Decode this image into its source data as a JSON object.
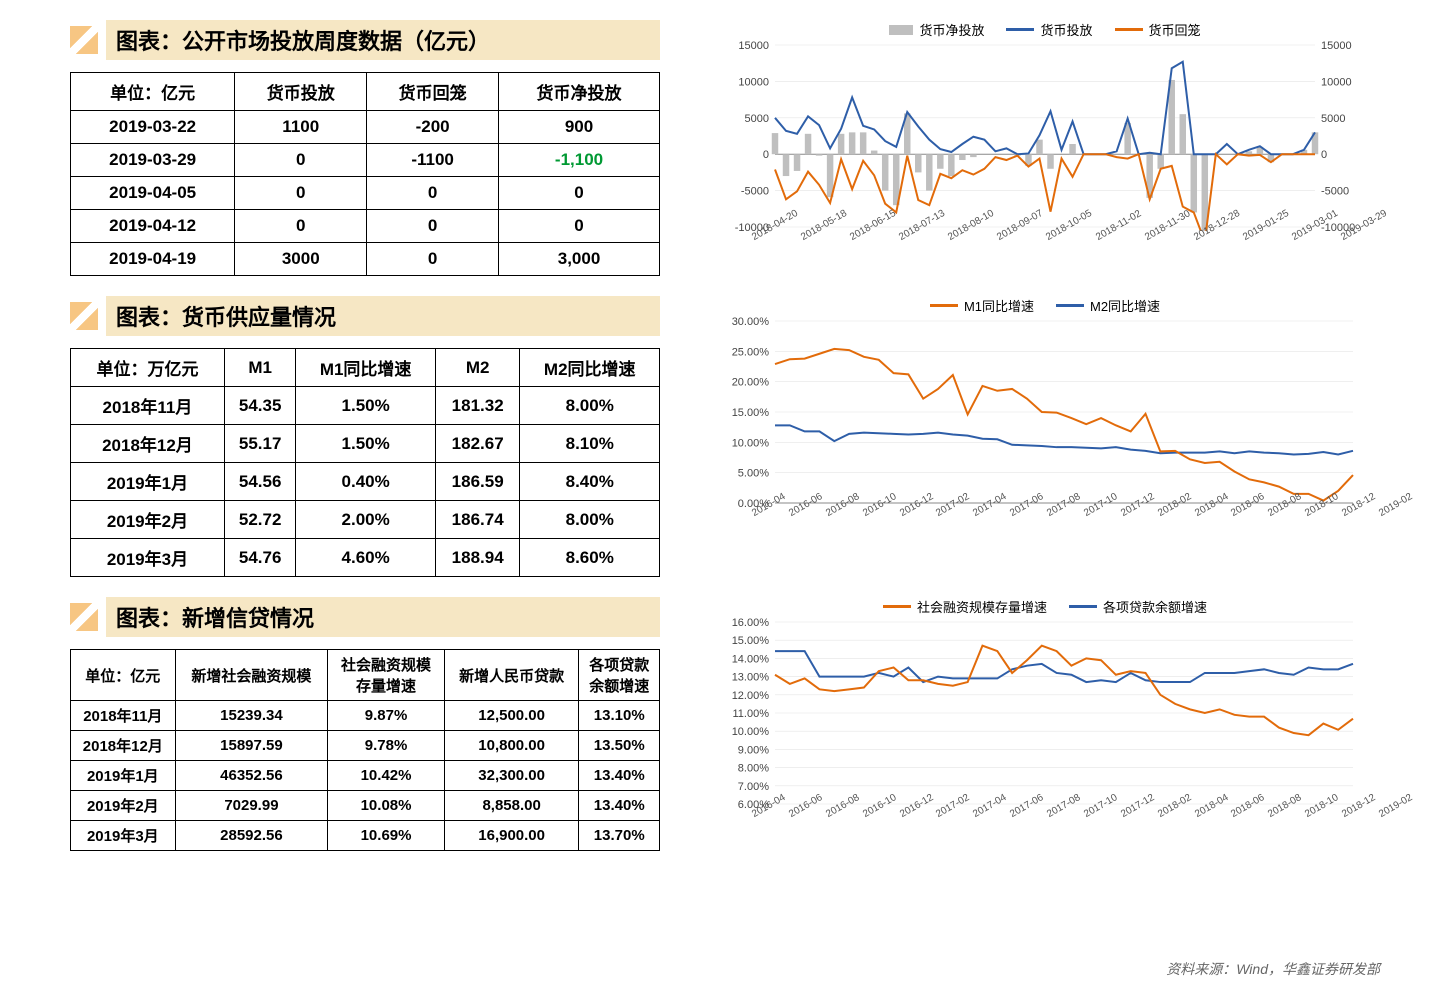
{
  "colors": {
    "titleBg": "#f6e7c4",
    "border": "#000000",
    "lineBlue": "#2e5ea8",
    "lineOrange": "#e26b0a",
    "barGray": "#bfbfbf",
    "neg": "#009933",
    "grid": "#e5e5e5"
  },
  "footer": "资料来源：Wind，华鑫证券研发部",
  "section1": {
    "title": "图表：公开市场投放周度数据（亿元）",
    "table": {
      "headers": [
        "单位：亿元",
        "货币投放",
        "货币回笼",
        "货币净投放"
      ],
      "rows": [
        [
          "2019-03-22",
          "1100",
          "-200",
          "900"
        ],
        [
          "2019-03-29",
          "0",
          "-1100",
          {
            "text": "-1,100",
            "neg": true
          }
        ],
        [
          "2019-04-05",
          "0",
          "0",
          "0"
        ],
        [
          "2019-04-12",
          "0",
          "0",
          "0"
        ],
        [
          "2019-04-19",
          "3000",
          "0",
          "3,000"
        ]
      ]
    },
    "chart": {
      "type": "bar+line",
      "legend": [
        {
          "label": "货币净投放",
          "style": "bar",
          "color": "#bfbfbf"
        },
        {
          "label": "货币投放",
          "style": "line",
          "color": "#2e5ea8"
        },
        {
          "label": "货币回笼",
          "style": "line",
          "color": "#e26b0a"
        }
      ],
      "ylim": [
        -10000,
        15000
      ],
      "yticks": [
        -10000,
        -5000,
        0,
        5000,
        10000,
        15000
      ],
      "rightAxis": true,
      "xlabels": [
        "2018-04-20",
        "2018-05-18",
        "2018-06-15",
        "2018-07-13",
        "2018-08-10",
        "2018-09-07",
        "2018-10-05",
        "2018-11-02",
        "2018-11-30",
        "2018-12-28",
        "2019-01-25",
        "2019-03-01",
        "2019-03-29"
      ],
      "bars": [
        2900,
        -3000,
        -2300,
        2800,
        -200,
        -5900,
        2800,
        3000,
        3000,
        500,
        -5000,
        -7000,
        5600,
        -2500,
        -5000,
        -2000,
        -3000,
        -800,
        -400,
        0,
        0,
        0,
        -200,
        -1600,
        2000,
        -2000,
        0,
        1400,
        0,
        0,
        0,
        0,
        4300,
        0,
        -6000,
        -2000,
        10200,
        5500,
        -8000,
        -12000,
        0,
        0,
        0,
        400,
        1000,
        -1100,
        0,
        0,
        600,
        3000
      ],
      "blue": [
        5000,
        3200,
        2800,
        5200,
        4000,
        800,
        3500,
        7800,
        3900,
        3400,
        1800,
        1000,
        5800,
        3800,
        2000,
        700,
        300,
        1400,
        2400,
        2000,
        400,
        800,
        0,
        100,
        2600,
        5900,
        600,
        4500,
        0,
        0,
        0,
        400,
        4900,
        0,
        200,
        0,
        11800,
        12700,
        0,
        0,
        0,
        1400,
        0,
        600,
        1100,
        0,
        0,
        0,
        600,
        3000
      ],
      "orange": [
        -2100,
        -6200,
        -5100,
        -2400,
        -4200,
        -6700,
        -700,
        -4800,
        -900,
        -2900,
        -6800,
        -8000,
        -200,
        -6300,
        -7000,
        -2700,
        -3300,
        -2200,
        -2800,
        -2000,
        -400,
        -800,
        -200,
        -1700,
        -600,
        -7900,
        -600,
        -3100,
        0,
        0,
        0,
        -400,
        -600,
        0,
        -6200,
        -2000,
        -1600,
        -7200,
        -8000,
        -12000,
        0,
        -1400,
        0,
        -200,
        -100,
        -1100,
        0,
        0,
        0,
        0
      ]
    }
  },
  "section2": {
    "title": "图表：货币供应量情况",
    "table": {
      "headers": [
        "单位：万亿元",
        "M1",
        "M1同比增速",
        "M2",
        "M2同比增速"
      ],
      "rows": [
        [
          "2018年11月",
          "54.35",
          "1.50%",
          "181.32",
          "8.00%"
        ],
        [
          "2018年12月",
          "55.17",
          "1.50%",
          "182.67",
          "8.10%"
        ],
        [
          "2019年1月",
          "54.56",
          "0.40%",
          "186.59",
          "8.40%"
        ],
        [
          "2019年2月",
          "52.72",
          "2.00%",
          "186.74",
          "8.00%"
        ],
        [
          "2019年3月",
          "54.76",
          "4.60%",
          "188.94",
          "8.60%"
        ]
      ]
    },
    "chart": {
      "type": "line",
      "legend": [
        {
          "label": "M1同比增速",
          "style": "line",
          "color": "#e26b0a"
        },
        {
          "label": "M2同比增速",
          "style": "line",
          "color": "#2e5ea8"
        }
      ],
      "ylim": [
        0,
        30
      ],
      "yticks": [
        0,
        5,
        10,
        15,
        20,
        25,
        30
      ],
      "yformat": "percent",
      "xlabels": [
        "2016-04",
        "2016-06",
        "2016-08",
        "2016-10",
        "2016-12",
        "2017-02",
        "2017-04",
        "2017-06",
        "2017-08",
        "2017-10",
        "2017-12",
        "2018-02",
        "2018-04",
        "2018-06",
        "2018-08",
        "2018-10",
        "2018-12",
        "2019-02"
      ],
      "orange": [
        22.9,
        23.7,
        23.8,
        24.6,
        25.4,
        25.2,
        24.1,
        23.6,
        21.4,
        21.2,
        17.2,
        18.8,
        21.1,
        14.6,
        19.3,
        18.5,
        18.8,
        17.2,
        15.0,
        14.9,
        14.0,
        13.0,
        14.0,
        12.8,
        11.8,
        14.7,
        8.5,
        8.6,
        7.2,
        6.6,
        6.8,
        5.2,
        3.9,
        3.4,
        2.7,
        1.5,
        1.5,
        0.4,
        2.0,
        4.6
      ],
      "blue": [
        12.8,
        12.8,
        11.8,
        11.8,
        10.2,
        11.4,
        11.6,
        11.5,
        11.4,
        11.3,
        11.4,
        11.6,
        11.3,
        11.1,
        10.6,
        10.5,
        9.6,
        9.5,
        9.4,
        9.2,
        9.2,
        9.1,
        9.0,
        9.2,
        8.8,
        8.6,
        8.2,
        8.3,
        8.3,
        8.3,
        8.5,
        8.2,
        8.5,
        8.3,
        8.2,
        8.0,
        8.1,
        8.4,
        8.0,
        8.6
      ]
    }
  },
  "section3": {
    "title": "图表：新增信贷情况",
    "table": {
      "headers": [
        "单位：亿元",
        "新增社会融资规模",
        "社会融资规模\n存量增速",
        "新增人民币贷款",
        "各项贷款\n余额增速"
      ],
      "rows": [
        [
          "2018年11月",
          "15239.34",
          "9.87%",
          "12,500.00",
          "13.10%"
        ],
        [
          "2018年12月",
          "15897.59",
          "9.78%",
          "10,800.00",
          "13.50%"
        ],
        [
          "2019年1月",
          "46352.56",
          "10.42%",
          "32,300.00",
          "13.40%"
        ],
        [
          "2019年2月",
          "7029.99",
          "10.08%",
          "8,858.00",
          "13.40%"
        ],
        [
          "2019年3月",
          "28592.56",
          "10.69%",
          "16,900.00",
          "13.70%"
        ]
      ]
    },
    "chart": {
      "type": "line",
      "legend": [
        {
          "label": "社会融资规模存量增速",
          "style": "line",
          "color": "#e26b0a"
        },
        {
          "label": "各项贷款余额增速",
          "style": "line",
          "color": "#2e5ea8"
        }
      ],
      "ylim": [
        6,
        16
      ],
      "yticks": [
        6,
        7,
        8,
        9,
        10,
        11,
        12,
        13,
        14,
        15,
        16
      ],
      "yformat": "percent",
      "xlabels": [
        "2016-04",
        "2016-06",
        "2016-08",
        "2016-10",
        "2016-12",
        "2017-02",
        "2017-04",
        "2017-06",
        "2017-08",
        "2017-10",
        "2017-12",
        "2018-02",
        "2018-04",
        "2018-06",
        "2018-08",
        "2018-10",
        "2018-12",
        "2019-02"
      ],
      "orange": [
        13.1,
        12.6,
        12.9,
        12.3,
        12.2,
        12.3,
        12.4,
        13.3,
        13.5,
        12.8,
        12.8,
        12.6,
        12.5,
        12.7,
        14.7,
        14.4,
        13.2,
        13.9,
        14.7,
        14.4,
        13.6,
        14.0,
        13.9,
        13.1,
        13.3,
        13.2,
        12.0,
        11.5,
        11.2,
        11.0,
        11.2,
        10.9,
        10.8,
        10.8,
        10.2,
        9.9,
        9.78,
        10.42,
        10.08,
        10.69
      ],
      "blue": [
        14.4,
        14.4,
        14.4,
        13.0,
        13.0,
        13.0,
        13.0,
        13.2,
        13.0,
        13.5,
        12.7,
        13.0,
        12.9,
        12.9,
        12.9,
        12.9,
        13.4,
        13.6,
        13.7,
        13.2,
        13.1,
        12.7,
        12.8,
        12.7,
        13.2,
        12.8,
        12.7,
        12.7,
        12.7,
        13.2,
        13.2,
        13.2,
        13.3,
        13.4,
        13.2,
        13.1,
        13.5,
        13.4,
        13.4,
        13.7
      ]
    }
  }
}
